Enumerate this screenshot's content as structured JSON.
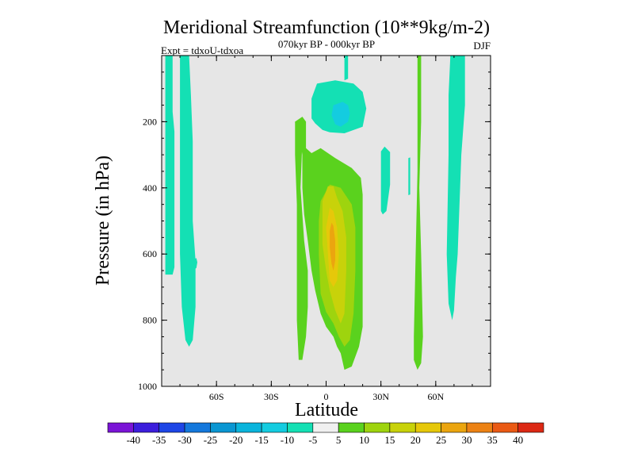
{
  "chart_data": {
    "type": "heatmap",
    "title": "Meridional Streamfunction (10**9kg/m-2)",
    "subtitle": "070kyr BP - 000kyr BP",
    "left_label": "Expt = tdxoU-tdxoa",
    "right_label": "DJF",
    "xlabel": "Latitude",
    "ylabel": "Pressure (in hPa)",
    "xlim": [
      -90,
      90
    ],
    "ylim": [
      1000,
      0
    ],
    "x_ticks": [
      {
        "value": -60,
        "label": "60S"
      },
      {
        "value": -30,
        "label": "30S"
      },
      {
        "value": 0,
        "label": "0"
      },
      {
        "value": 30,
        "label": "30N"
      },
      {
        "value": 60,
        "label": "60N"
      }
    ],
    "y_ticks": [
      {
        "value": 200,
        "label": "200"
      },
      {
        "value": 400,
        "label": "400"
      },
      {
        "value": 600,
        "label": "600"
      },
      {
        "value": 800,
        "label": "800"
      },
      {
        "value": 1000,
        "label": "1000"
      }
    ],
    "background_color": "#e6e6e6",
    "colorbar": {
      "levels": [
        "-40",
        "-35",
        "-30",
        "-25",
        "-20",
        "-15",
        "-10",
        "-5",
        "5",
        "10",
        "15",
        "20",
        "25",
        "30",
        "35",
        "40"
      ],
      "colors": [
        "#7a14d6",
        "#3c1edc",
        "#1e46e6",
        "#1478dc",
        "#0a96d2",
        "#0ab4dc",
        "#14cce0",
        "#14e0b4",
        "#f0f0f0",
        "#5ad21e",
        "#9ed40e",
        "#c8d20a",
        "#e6c80a",
        "#eba50f",
        "#ec8214",
        "#ea5a14",
        "#dc2814"
      ]
    },
    "regions": [
      {
        "value": -7.5,
        "points": [
          [
            -88,
            0
          ],
          [
            -84,
            0
          ],
          [
            -84,
            170
          ],
          [
            -83,
            230
          ],
          [
            -83,
            640
          ],
          [
            -84,
            662
          ],
          [
            -88,
            662
          ]
        ]
      },
      {
        "value": -7.5,
        "points": [
          [
            -80,
            0
          ],
          [
            -75,
            0
          ],
          [
            -74,
            120
          ],
          [
            -73,
            260
          ],
          [
            -73,
            500
          ],
          [
            -71.5,
            620
          ],
          [
            -71.5,
            760
          ],
          [
            -73,
            860
          ],
          [
            -75,
            880
          ],
          [
            -77,
            860
          ],
          [
            -79,
            760
          ],
          [
            -80,
            600
          ],
          [
            -80,
            300
          ]
        ]
      },
      {
        "value": -7.5,
        "points": [
          [
            -72,
            615
          ],
          [
            -71,
            612
          ],
          [
            -70.5,
            625
          ],
          [
            -71,
            642
          ],
          [
            -72,
            646
          ],
          [
            -72.5,
            630
          ]
        ]
      },
      {
        "value": -7.5,
        "points": [
          [
            -5,
            85
          ],
          [
            5,
            75
          ],
          [
            15,
            85
          ],
          [
            20,
            110
          ],
          [
            22,
            160
          ],
          [
            20,
            215
          ],
          [
            10,
            235
          ],
          [
            2,
            232
          ],
          [
            -2,
            225
          ],
          [
            -6,
            205
          ],
          [
            -8,
            190
          ],
          [
            -8,
            130
          ]
        ]
      },
      {
        "value": -12.5,
        "points": [
          [
            4,
            150
          ],
          [
            9,
            140
          ],
          [
            12,
            150
          ],
          [
            13,
            175
          ],
          [
            12,
            200
          ],
          [
            8,
            215
          ],
          [
            5,
            208
          ],
          [
            3,
            180
          ]
        ]
      },
      {
        "value": -7.5,
        "points": [
          [
            10,
            0
          ],
          [
            12,
            0
          ],
          [
            12,
            70
          ],
          [
            10,
            75
          ]
        ]
      },
      {
        "value": -7.5,
        "points": [
          [
            30,
            290
          ],
          [
            32,
            275
          ],
          [
            35,
            292
          ],
          [
            35,
            390
          ],
          [
            33,
            470
          ],
          [
            31,
            480
          ],
          [
            30,
            470
          ],
          [
            30,
            380
          ]
        ]
      },
      {
        "value": -7.5,
        "points": [
          [
            45,
            310
          ],
          [
            46,
            308
          ],
          [
            46,
            420
          ],
          [
            45,
            422
          ]
        ]
      },
      {
        "value": -7.5,
        "points": [
          [
            68,
            0
          ],
          [
            76,
            0
          ],
          [
            76,
            150
          ],
          [
            74,
            300
          ],
          [
            72,
            600
          ],
          [
            71,
            670
          ],
          [
            70,
            770
          ],
          [
            69,
            800
          ],
          [
            67,
            750
          ],
          [
            66,
            600
          ],
          [
            67,
            300
          ],
          [
            67,
            120
          ]
        ]
      },
      {
        "value": 7.5,
        "points": [
          [
            -17,
            200
          ],
          [
            -13,
            185
          ],
          [
            -11,
            200
          ],
          [
            -11,
            280
          ],
          [
            -8,
            295
          ],
          [
            -3,
            280
          ],
          [
            5,
            310
          ],
          [
            14,
            340
          ],
          [
            19,
            370
          ],
          [
            20,
            420
          ],
          [
            20,
            820
          ],
          [
            18,
            880
          ],
          [
            14,
            940
          ],
          [
            10,
            950
          ],
          [
            8,
            900
          ],
          [
            6,
            880
          ],
          [
            4,
            850
          ],
          [
            0,
            820
          ],
          [
            -3,
            780
          ],
          [
            -6,
            710
          ],
          [
            -8,
            650
          ],
          [
            -10,
            560
          ],
          [
            -12,
            480
          ],
          [
            -13,
            400
          ],
          [
            -13,
            300
          ],
          [
            -14,
            260
          ],
          [
            -16,
            240
          ]
        ]
      },
      {
        "value": 7.5,
        "points": [
          [
            -17,
            200
          ],
          [
            -15,
            200
          ],
          [
            -15,
            220
          ],
          [
            -13,
            260
          ],
          [
            -14,
            400
          ],
          [
            -13,
            480
          ],
          [
            -12,
            560
          ],
          [
            -10,
            650
          ],
          [
            -10,
            760
          ],
          [
            -11,
            850
          ],
          [
            -13,
            920
          ],
          [
            -15,
            920
          ],
          [
            -16,
            800
          ],
          [
            -16,
            650
          ],
          [
            -16,
            450
          ],
          [
            -17,
            300
          ]
        ]
      },
      {
        "value": 12.5,
        "points": [
          [
            -3,
            440
          ],
          [
            2,
            390
          ],
          [
            8,
            400
          ],
          [
            14,
            450
          ],
          [
            16,
            520
          ],
          [
            16,
            650
          ],
          [
            15,
            780
          ],
          [
            13,
            860
          ],
          [
            10,
            880
          ],
          [
            7,
            850
          ],
          [
            4,
            810
          ],
          [
            0,
            775
          ],
          [
            -3,
            720
          ],
          [
            -4,
            600
          ],
          [
            -4,
            500
          ]
        ]
      },
      {
        "value": 17.5,
        "points": [
          [
            -2,
            440
          ],
          [
            1,
            395
          ],
          [
            4,
            395
          ],
          [
            6,
            430
          ],
          [
            9,
            470
          ],
          [
            11,
            550
          ],
          [
            11,
            650
          ],
          [
            10,
            780
          ],
          [
            8,
            810
          ],
          [
            5,
            770
          ],
          [
            2,
            710
          ],
          [
            0,
            650
          ],
          [
            -2,
            570
          ]
        ]
      },
      {
        "value": 22.5,
        "points": [
          [
            0,
            520
          ],
          [
            2,
            460
          ],
          [
            4,
            470
          ],
          [
            6,
            520
          ],
          [
            7,
            600
          ],
          [
            6,
            680
          ],
          [
            4,
            700
          ],
          [
            2,
            680
          ],
          [
            1,
            600
          ]
        ]
      },
      {
        "value": 27.5,
        "points": [
          [
            2,
            530
          ],
          [
            3,
            505
          ],
          [
            4,
            515
          ],
          [
            5,
            560
          ],
          [
            5,
            620
          ],
          [
            4,
            650
          ],
          [
            3,
            630
          ],
          [
            2,
            580
          ]
        ]
      },
      {
        "value": 7.5,
        "points": [
          [
            50,
            0
          ],
          [
            52,
            0
          ],
          [
            52,
            200
          ],
          [
            51,
            400
          ],
          [
            52,
            600
          ],
          [
            53,
            850
          ],
          [
            52,
            930
          ],
          [
            50,
            950
          ],
          [
            48,
            920
          ],
          [
            48,
            850
          ],
          [
            49,
            600
          ],
          [
            50,
            350
          ]
        ]
      }
    ]
  }
}
